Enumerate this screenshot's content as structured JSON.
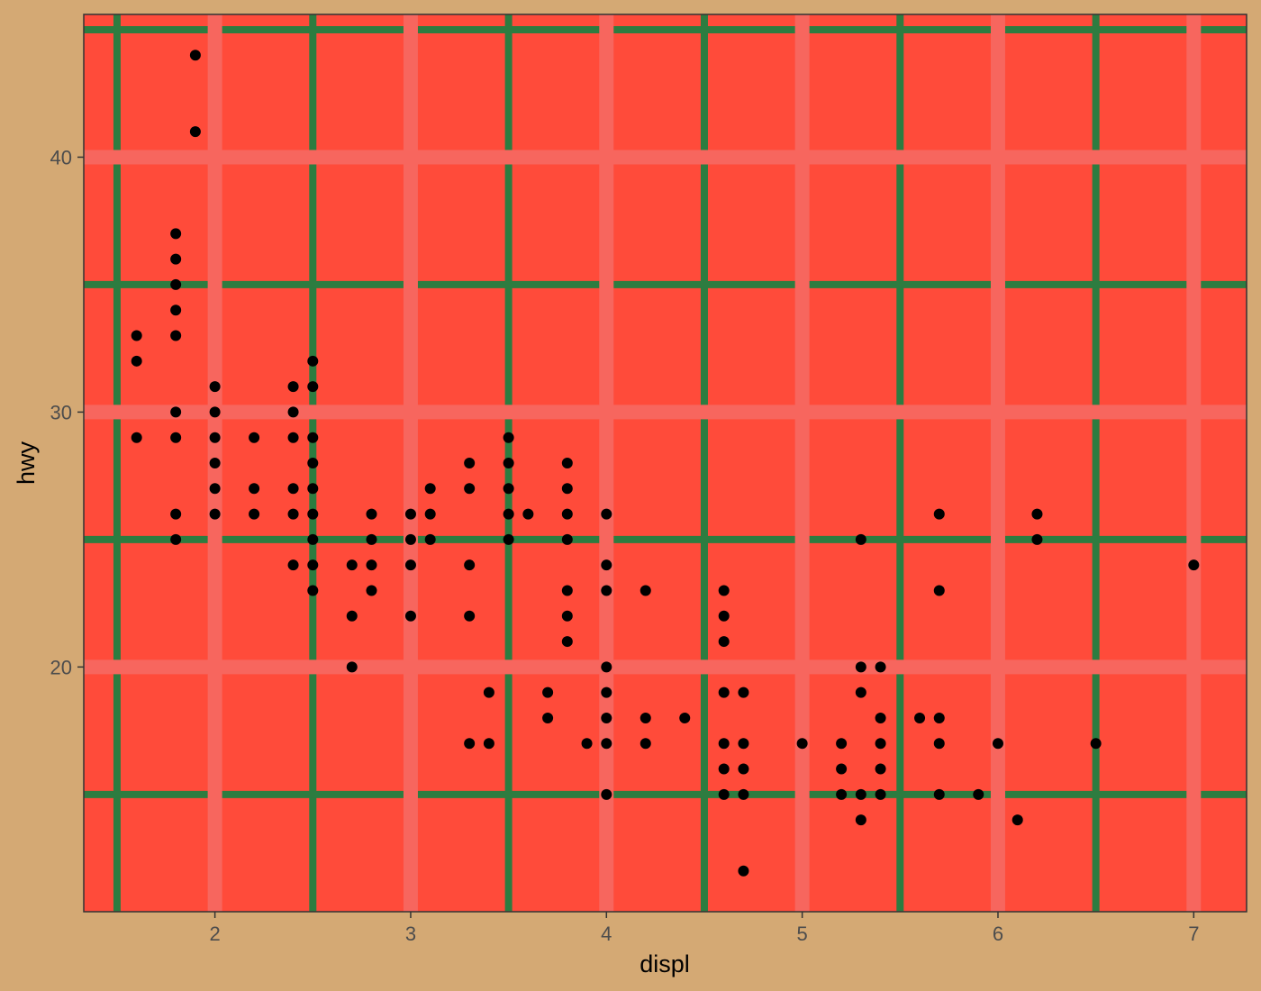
{
  "chart_data": {
    "type": "scatter",
    "title": "",
    "xlabel": "displ",
    "ylabel": "hwy",
    "xlim": [
      1.33,
      7.27
    ],
    "ylim": [
      10.4,
      45.6
    ],
    "x_ticks": [
      2,
      3,
      4,
      5,
      6,
      7
    ],
    "y_ticks": [
      20,
      30,
      40
    ],
    "x_tick_labels": [
      "2",
      "3",
      "4",
      "5",
      "6",
      "7"
    ],
    "y_tick_labels": [
      "20",
      "30",
      "40"
    ],
    "x_minor_grid": [
      1.5,
      2.5,
      3.5,
      4.5,
      5.5,
      6.5
    ],
    "y_minor_grid": [
      15,
      25,
      35,
      45
    ],
    "grid": true,
    "legend": "none",
    "colors": {
      "page_background": "#d4a974",
      "panel_background": "#ff4b3a",
      "major_grid": "#f7665e",
      "minor_grid": "#2d7c40",
      "points": "#000000",
      "panel_border": "#333333"
    },
    "points": [
      {
        "x": 1.6,
        "y": 33
      },
      {
        "x": 1.6,
        "y": 32
      },
      {
        "x": 1.6,
        "y": 29
      },
      {
        "x": 1.8,
        "y": 37
      },
      {
        "x": 1.8,
        "y": 36
      },
      {
        "x": 1.8,
        "y": 35
      },
      {
        "x": 1.8,
        "y": 34
      },
      {
        "x": 1.8,
        "y": 33
      },
      {
        "x": 1.8,
        "y": 30
      },
      {
        "x": 1.8,
        "y": 29
      },
      {
        "x": 1.8,
        "y": 26
      },
      {
        "x": 1.8,
        "y": 25
      },
      {
        "x": 1.9,
        "y": 44
      },
      {
        "x": 1.9,
        "y": 41
      },
      {
        "x": 2.0,
        "y": 31
      },
      {
        "x": 2.0,
        "y": 30
      },
      {
        "x": 2.0,
        "y": 29
      },
      {
        "x": 2.0,
        "y": 28
      },
      {
        "x": 2.0,
        "y": 27
      },
      {
        "x": 2.0,
        "y": 26
      },
      {
        "x": 2.2,
        "y": 29
      },
      {
        "x": 2.2,
        "y": 27
      },
      {
        "x": 2.2,
        "y": 26
      },
      {
        "x": 2.4,
        "y": 31
      },
      {
        "x": 2.4,
        "y": 30
      },
      {
        "x": 2.4,
        "y": 29
      },
      {
        "x": 2.4,
        "y": 27
      },
      {
        "x": 2.4,
        "y": 26
      },
      {
        "x": 2.4,
        "y": 24
      },
      {
        "x": 2.5,
        "y": 32
      },
      {
        "x": 2.5,
        "y": 31
      },
      {
        "x": 2.5,
        "y": 29
      },
      {
        "x": 2.5,
        "y": 28
      },
      {
        "x": 2.5,
        "y": 27
      },
      {
        "x": 2.5,
        "y": 26
      },
      {
        "x": 2.5,
        "y": 25
      },
      {
        "x": 2.5,
        "y": 24
      },
      {
        "x": 2.5,
        "y": 23
      },
      {
        "x": 2.7,
        "y": 24
      },
      {
        "x": 2.7,
        "y": 22
      },
      {
        "x": 2.7,
        "y": 20
      },
      {
        "x": 2.8,
        "y": 26
      },
      {
        "x": 2.8,
        "y": 25
      },
      {
        "x": 2.8,
        "y": 24
      },
      {
        "x": 2.8,
        "y": 23
      },
      {
        "x": 3.0,
        "y": 26
      },
      {
        "x": 3.0,
        "y": 25
      },
      {
        "x": 3.0,
        "y": 24
      },
      {
        "x": 3.0,
        "y": 22
      },
      {
        "x": 3.1,
        "y": 27
      },
      {
        "x": 3.1,
        "y": 26
      },
      {
        "x": 3.1,
        "y": 25
      },
      {
        "x": 3.3,
        "y": 28
      },
      {
        "x": 3.3,
        "y": 27
      },
      {
        "x": 3.3,
        "y": 24
      },
      {
        "x": 3.3,
        "y": 22
      },
      {
        "x": 3.3,
        "y": 17
      },
      {
        "x": 3.4,
        "y": 19
      },
      {
        "x": 3.4,
        "y": 17
      },
      {
        "x": 3.5,
        "y": 29
      },
      {
        "x": 3.5,
        "y": 28
      },
      {
        "x": 3.5,
        "y": 27
      },
      {
        "x": 3.5,
        "y": 26
      },
      {
        "x": 3.5,
        "y": 25
      },
      {
        "x": 3.6,
        "y": 26
      },
      {
        "x": 3.7,
        "y": 19
      },
      {
        "x": 3.7,
        "y": 18
      },
      {
        "x": 3.8,
        "y": 28
      },
      {
        "x": 3.8,
        "y": 27
      },
      {
        "x": 3.8,
        "y": 26
      },
      {
        "x": 3.8,
        "y": 25
      },
      {
        "x": 3.8,
        "y": 23
      },
      {
        "x": 3.8,
        "y": 22
      },
      {
        "x": 3.8,
        "y": 21
      },
      {
        "x": 3.9,
        "y": 17
      },
      {
        "x": 4.0,
        "y": 26
      },
      {
        "x": 4.0,
        "y": 24
      },
      {
        "x": 4.0,
        "y": 23
      },
      {
        "x": 4.0,
        "y": 20
      },
      {
        "x": 4.0,
        "y": 19
      },
      {
        "x": 4.0,
        "y": 18
      },
      {
        "x": 4.0,
        "y": 17
      },
      {
        "x": 4.0,
        "y": 15
      },
      {
        "x": 4.2,
        "y": 23
      },
      {
        "x": 4.2,
        "y": 18
      },
      {
        "x": 4.2,
        "y": 17
      },
      {
        "x": 4.4,
        "y": 18
      },
      {
        "x": 4.6,
        "y": 23
      },
      {
        "x": 4.6,
        "y": 22
      },
      {
        "x": 4.6,
        "y": 21
      },
      {
        "x": 4.6,
        "y": 19
      },
      {
        "x": 4.6,
        "y": 17
      },
      {
        "x": 4.6,
        "y": 16
      },
      {
        "x": 4.6,
        "y": 15
      },
      {
        "x": 4.7,
        "y": 19
      },
      {
        "x": 4.7,
        "y": 17
      },
      {
        "x": 4.7,
        "y": 16
      },
      {
        "x": 4.7,
        "y": 15
      },
      {
        "x": 4.7,
        "y": 12
      },
      {
        "x": 5.0,
        "y": 17
      },
      {
        "x": 5.2,
        "y": 17
      },
      {
        "x": 5.2,
        "y": 16
      },
      {
        "x": 5.2,
        "y": 15
      },
      {
        "x": 5.3,
        "y": 25
      },
      {
        "x": 5.3,
        "y": 20
      },
      {
        "x": 5.3,
        "y": 19
      },
      {
        "x": 5.3,
        "y": 15
      },
      {
        "x": 5.3,
        "y": 14
      },
      {
        "x": 5.4,
        "y": 20
      },
      {
        "x": 5.4,
        "y": 18
      },
      {
        "x": 5.4,
        "y": 17
      },
      {
        "x": 5.4,
        "y": 16
      },
      {
        "x": 5.4,
        "y": 15
      },
      {
        "x": 5.6,
        "y": 18
      },
      {
        "x": 5.7,
        "y": 26
      },
      {
        "x": 5.7,
        "y": 23
      },
      {
        "x": 5.7,
        "y": 18
      },
      {
        "x": 5.7,
        "y": 17
      },
      {
        "x": 5.7,
        "y": 15
      },
      {
        "x": 5.9,
        "y": 15
      },
      {
        "x": 6.0,
        "y": 17
      },
      {
        "x": 6.1,
        "y": 14
      },
      {
        "x": 6.2,
        "y": 26
      },
      {
        "x": 6.2,
        "y": 25
      },
      {
        "x": 6.5,
        "y": 17
      },
      {
        "x": 7.0,
        "y": 24
      }
    ]
  }
}
